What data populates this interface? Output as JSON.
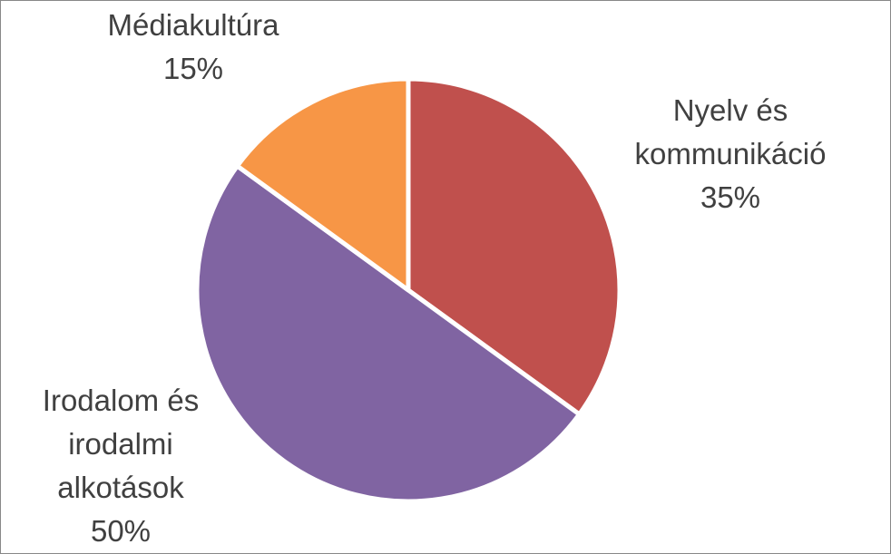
{
  "chart_data": {
    "type": "pie",
    "categories": [
      "Nyelv és kommunikáció",
      "Irodalom és irodalmi alkotások",
      "Médiakultúra"
    ],
    "values": [
      35,
      50,
      15
    ],
    "value_labels": [
      "35%",
      "50%",
      "15%"
    ],
    "colors": [
      "#c0504d",
      "#8064a2",
      "#f79646"
    ]
  }
}
